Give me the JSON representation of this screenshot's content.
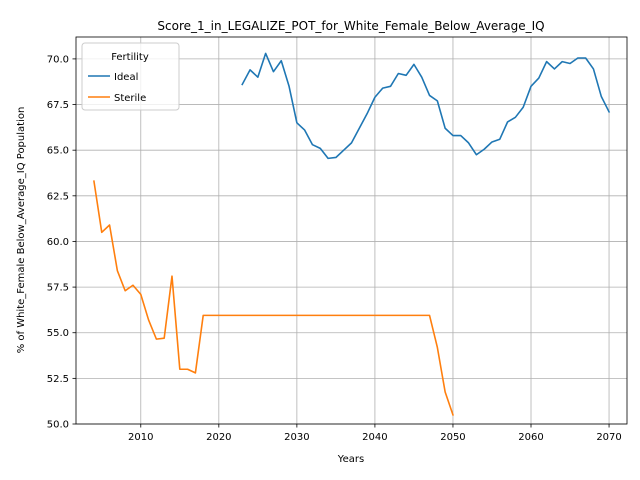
{
  "chart_data": {
    "type": "line",
    "title": "Score_1_in_LEGALIZE_POT_for_White_Female_Below_Average_IQ",
    "xlabel": "Years",
    "ylabel": "% of White_Female Below_Average_IQ Population",
    "xlim": [
      2001.7,
      2072.3
    ],
    "ylim": [
      50.0,
      71.2
    ],
    "xticks": [
      2010,
      2020,
      2030,
      2040,
      2050,
      2060,
      2070
    ],
    "yticks": [
      50.0,
      52.5,
      55.0,
      57.5,
      60.0,
      62.5,
      65.0,
      67.5,
      70.0
    ],
    "xtick_labels": [
      "2010",
      "2020",
      "2030",
      "2040",
      "2050",
      "2060",
      "2070"
    ],
    "ytick_labels": [
      "50.0",
      "52.5",
      "55.0",
      "57.5",
      "60.0",
      "62.5",
      "65.0",
      "67.5",
      "70.0"
    ],
    "grid": true,
    "legend": {
      "title": "Fertility",
      "position": "upper-left"
    },
    "series": [
      {
        "name": "Ideal",
        "color": "#1f77b4",
        "x": [
          2023,
          2024,
          2025,
          2026,
          2027,
          2028,
          2029,
          2030,
          2031,
          2032,
          2033,
          2034,
          2035,
          2036,
          2037,
          2038,
          2039,
          2040,
          2041,
          2042,
          2043,
          2044,
          2045,
          2046,
          2047,
          2048,
          2049,
          2050,
          2051,
          2052,
          2053,
          2054,
          2055,
          2056,
          2057,
          2058,
          2059,
          2060,
          2061,
          2062,
          2063,
          2064,
          2065,
          2066,
          2067,
          2068,
          2069,
          2070
        ],
        "y": [
          68.6,
          69.4,
          69.0,
          70.3,
          69.3,
          69.9,
          68.5,
          66.5,
          66.1,
          65.3,
          65.1,
          64.55,
          64.6,
          65.0,
          65.4,
          66.2,
          67.0,
          67.9,
          68.4,
          68.5,
          69.2,
          69.1,
          69.7,
          69.0,
          68.0,
          67.7,
          66.2,
          65.8,
          65.8,
          65.4,
          64.75,
          65.05,
          65.45,
          65.6,
          66.55,
          66.8,
          67.35,
          68.5,
          68.95,
          69.85,
          69.45,
          69.85,
          69.75,
          70.05,
          70.05,
          69.45,
          67.95,
          67.1
        ]
      },
      {
        "name": "Sterile",
        "color": "#ff7f0e",
        "x": [
          2004,
          2005,
          2006,
          2007,
          2008,
          2009,
          2010,
          2011,
          2012,
          2013,
          2014,
          2015,
          2016,
          2017,
          2018,
          2019,
          2020,
          2030,
          2040,
          2045,
          2046,
          2047,
          2048,
          2049,
          2050
        ],
        "y": [
          63.3,
          60.5,
          60.9,
          58.4,
          57.3,
          57.6,
          57.1,
          55.7,
          54.65,
          54.7,
          58.1,
          53.0,
          53.0,
          52.8,
          55.95,
          55.95,
          55.95,
          55.95,
          55.95,
          55.95,
          55.95,
          55.95,
          54.2,
          51.75,
          50.5
        ]
      }
    ]
  }
}
